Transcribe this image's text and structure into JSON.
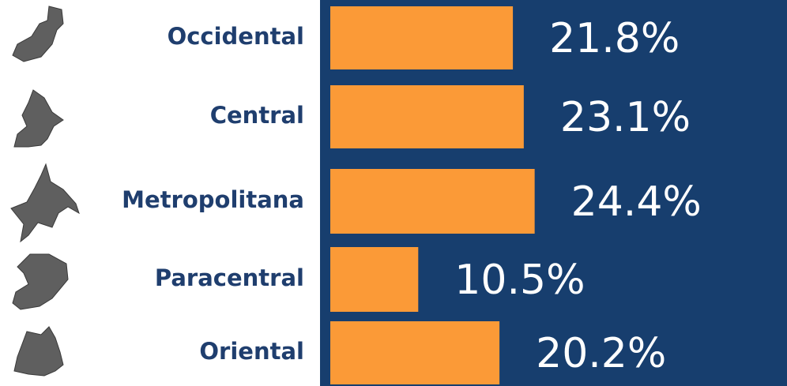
{
  "chart_data": {
    "type": "bar",
    "orientation": "horizontal",
    "categories": [
      "Occidental",
      "Central",
      "Metropolitana",
      "Paracentral",
      "Oriental"
    ],
    "values": [
      21.8,
      23.1,
      24.4,
      10.5,
      20.2
    ],
    "value_labels": [
      "21.8%",
      "23.1%",
      "24.4%",
      "10.5%",
      "20.2%"
    ],
    "color": "#fb9a37",
    "background": "#173e6e"
  }
}
